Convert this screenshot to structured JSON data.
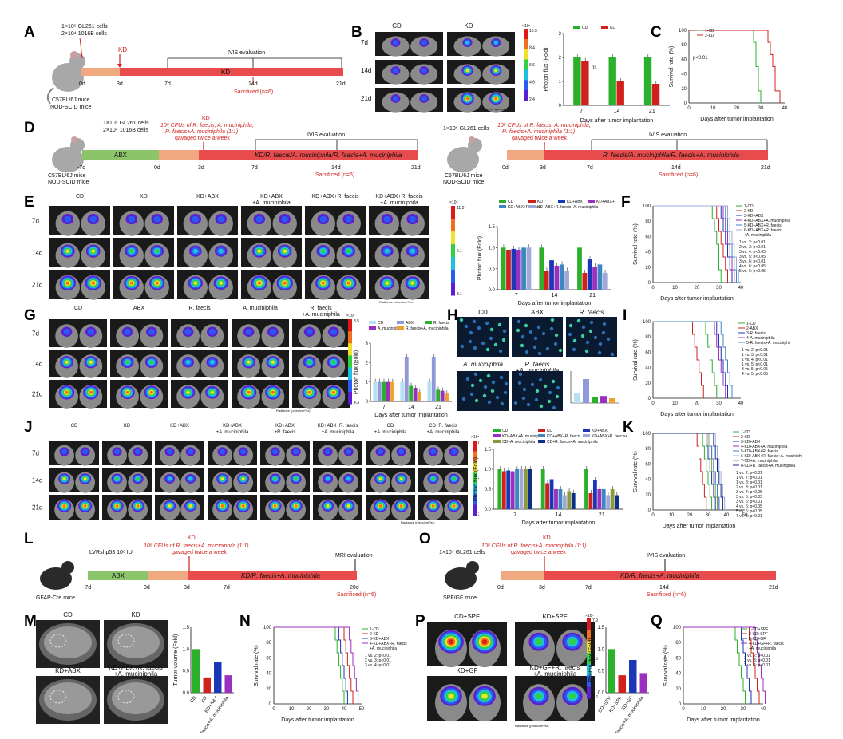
{
  "panels": {
    "A": {
      "label": "A",
      "cells": "1×10⁵ GL261 cells",
      "cells2": "2×10⁴ 1016B cells",
      "mice": "C57BL/6J mice",
      "mice2": "NOD-SCID mice",
      "kd_arrow": "KD",
      "ivis": "IVIS evaluation",
      "bar_label": "KD",
      "sacrificed": "Sacrificed (n=6)",
      "ticks": [
        "0d",
        "3d",
        "7d",
        "14d",
        "21d"
      ]
    },
    "B": {
      "label": "B",
      "groups": [
        "CD",
        "KD"
      ],
      "rows": [
        "7d",
        "14d",
        "21d"
      ],
      "colorbar_unit": "Radiance (p/sec/cm²/sr)",
      "colorbar_max": "10.5",
      "colorbar_ticks": [
        "8.4",
        "6.6",
        "4.6",
        "2.4"
      ],
      "colorbar_exp": "×10⁵",
      "chart_data": {
        "type": "bar",
        "categories": [
          "7",
          "14",
          "21"
        ],
        "series": [
          {
            "name": "CD",
            "values": [
              2.0,
              2.0,
              2.0
            ],
            "color": "#2ab02a"
          },
          {
            "name": "KD",
            "values": [
              1.85,
              1.0,
              0.9
            ],
            "color": "#d0211c"
          }
        ],
        "xlabel": "Days after tumor implantation",
        "ylabel": "Photon flux (Fold)",
        "ylim": [
          0,
          3
        ],
        "yticks": [
          "0",
          "1",
          "2",
          "3"
        ],
        "annotations": [
          "ns",
          "**",
          "**"
        ]
      }
    },
    "C": {
      "label": "C",
      "chart_data": {
        "type": "line",
        "series": [
          {
            "name": "1-CD",
            "color": "#2ab02a"
          },
          {
            "name": "2-KD",
            "color": "#d0211c"
          }
        ],
        "xlabel": "Days after tumor implantation",
        "ylabel": "Survival rate (%)",
        "xticks": [
          "0",
          "10",
          "20",
          "30",
          "40"
        ],
        "yticks": [
          "0",
          "20",
          "40",
          "60",
          "80",
          "100"
        ],
        "annotation": "p<0.01"
      }
    },
    "D": {
      "label": "D",
      "cells": "1×10⁵ GL261 cells",
      "cells2": "2×10⁴ 1016B cells",
      "cfu": "10⁸ CFUs of R. faecis, A. muciniphila,",
      "cfu2": "R. faecis+A. muciniphila (1:1)",
      "gavage": "gavaged twice a week",
      "kd_arrow": "KD",
      "abx": "ABX",
      "bar": "KD/R. faecis/A. muciniphila/R. faecis+A. muciniphila",
      "ivis": "IVIS evaluation",
      "sacrificed": "Sacrificed (n=6)",
      "mice": "C57BL/6J mice",
      "mice2": "NOD-SCID mice",
      "ticks": [
        "-7d",
        "0d",
        "3d",
        "7d",
        "14d",
        "21d"
      ],
      "right": {
        "cells": "1×10⁵ GL261 cells",
        "cfu": "10⁸ CFUs of R. faecis, A. muciniphila,",
        "cfu2": "R. faecis+A. muciniphila (1:1)",
        "gavage": "gavaged twice a week",
        "bar": "R. faecis/A. muciniphila/R. faecis+A. muciniphila",
        "ivis": "IVIS evaluation",
        "sacrificed": "Sacrificed (n=6)",
        "mice": "C57BL/6J mice",
        "mice2": "NOD-SCID mice",
        "ticks": [
          "0d",
          "3d",
          "7d",
          "14d",
          "21d"
        ]
      }
    },
    "E": {
      "label": "E",
      "groups": [
        "CD",
        "KD",
        "KD+ABX",
        "KD+ABX\n+A. muciniphila",
        "KD+ABX+R. faecis",
        "KD+ABX+R. faecis\n+A. muciniphila"
      ],
      "rows": [
        "7d",
        "14d",
        "21d"
      ],
      "colorbar_max": "11.5",
      "colorbar_mid": "6.1",
      "colorbar_low": "3.1",
      "colorbar_exp": "×10⁵",
      "colorbar_unit": "Radiance (p/sec/cm²/sr)",
      "chart_data": {
        "type": "bar",
        "categories": [
          "7",
          "14",
          "21"
        ],
        "series": [
          {
            "name": "CD",
            "values": [
              1.0,
              1.0,
              1.0
            ],
            "color": "#2ab02a"
          },
          {
            "name": "KD",
            "values": [
              0.95,
              0.45,
              0.4
            ],
            "color": "#d0211c"
          },
          {
            "name": "KD+ABX",
            "values": [
              0.97,
              0.7,
              0.72
            ],
            "color": "#1c36b8"
          },
          {
            "name": "KD+ABX+A. muciniphila",
            "values": [
              0.95,
              0.57,
              0.55
            ],
            "color": "#9a2fc0"
          },
          {
            "name": "KD+ABX+R. faecis",
            "values": [
              1.0,
              0.6,
              0.6
            ],
            "color": "#3d86c0"
          },
          {
            "name": "KD+ABX+R. faecis+A. muciniphila",
            "values": [
              1.0,
              0.45,
              0.4
            ],
            "color": "#9fa8d8"
          }
        ],
        "xlabel": "Days after tumor implantation",
        "ylabel": "Photon flux (Fold)",
        "ylim": [
          0,
          1.5
        ],
        "yticks": [
          "0.0",
          "0.5",
          "1.0",
          "1.5"
        ]
      }
    },
    "F": {
      "label": "F",
      "legend": [
        "1-CD",
        "2-KD",
        "3-KD+ABX",
        "4-KD+ABX+A. muciniphila",
        "5-KD+ABX+R. faecis",
        "6-KD+ABX+R. faecis\n+A. muciniphila"
      ],
      "stats": [
        "1 vs. 2: p<0.01",
        "2 vs. 3: p<0.01",
        "3 vs. 4: p<0.05",
        "3 vs. 5: p<0.05",
        "3 vs. 6: p<0.01",
        "4 vs. 6: p<0.05",
        "5 vs. 6: p<0.05"
      ],
      "xlabel": "Days after tumor implantation",
      "ylabel": "Survival rate (%)",
      "xticks": [
        "0",
        "10",
        "20",
        "30",
        "40"
      ],
      "yticks": [
        "0",
        "20",
        "40",
        "60",
        "80",
        "100"
      ]
    },
    "G": {
      "label": "G",
      "groups": [
        "CD",
        "ABX",
        "R. faecis",
        "A. muciniphila",
        "R. faecis\n+A. muciniphila"
      ],
      "rows": [
        "7d",
        "14d",
        "21d"
      ],
      "colorbar_max": "8.5",
      "colorbar_mid": "6.5",
      "colorbar_low": "4.3",
      "colorbar_exp": "×10⁵",
      "colorbar_unit": "Radiance (p/sec/cm²/sr)",
      "chart_data": {
        "type": "bar",
        "categories": [
          "7",
          "14",
          "21"
        ],
        "series": [
          {
            "name": "CD",
            "values": [
              1.0,
              1.0,
              1.0
            ],
            "color": "#b7e0f0"
          },
          {
            "name": "ABX",
            "values": [
              1.0,
              2.3,
              2.3
            ],
            "color": "#8f98d8"
          },
          {
            "name": "R. faecis",
            "values": [
              1.0,
              0.8,
              0.6
            ],
            "color": "#2ab02a"
          },
          {
            "name": "A. muciniphila",
            "values": [
              1.0,
              0.7,
              0.55
            ],
            "color": "#9a2fc0"
          },
          {
            "name": "R. faecis+A. muciniphila",
            "values": [
              1.0,
              0.5,
              0.4
            ],
            "color": "#f0a030"
          }
        ],
        "xlabel": "Days after tumor implantation",
        "ylabel": "Photon flux (Fold)",
        "ylim": [
          0,
          3
        ],
        "yticks": [
          "0",
          "1",
          "2",
          "3"
        ]
      }
    },
    "H": {
      "label": "H",
      "groups": [
        "CD",
        "ABX",
        "R. faecis",
        "A. muciniphila",
        "R. faecis\n+A. muciniphila"
      ]
    },
    "I": {
      "label": "I",
      "legend": [
        "1-CD",
        "2-ABX",
        "3-R. faecis",
        "4-A. muciniphila",
        "5-R. faecis+A. muciniphila"
      ],
      "stats": [
        "1 vs. 2: p<0.01",
        "1 vs. 3: p<0.01",
        "1 vs. 4: p<0.01",
        "1 vs. 5: p<0.01",
        "3 vs. 5: p<0.05",
        "4 vs. 5: p<0.05"
      ],
      "xlabel": "Days after tumor implantation",
      "ylabel": "Survival rate (%)",
      "xticks": [
        "0",
        "10",
        "20",
        "30",
        "40"
      ],
      "yticks": [
        "0",
        "20",
        "40",
        "60",
        "80",
        "100"
      ]
    },
    "J": {
      "label": "J",
      "groups": [
        "CD",
        "KD",
        "KD+ABX",
        "KD+ABX\n+A. muciniphila",
        "KD+ABX\n+R. faecis",
        "KD+ABX+R. faecis\n+A. muciniphila",
        "CD\n+A. muciniphila",
        "CD+R. faecis\n+A. muciniphila"
      ],
      "rows": [
        "7d",
        "14d",
        "21d"
      ],
      "colorbar_max": "8.0",
      "colorbar_mid": "4.9",
      "colorbar_low": "2.1",
      "colorbar_exp": "×10⁵",
      "colorbar_unit": "Radiance (p/sec/cm²/sr)",
      "chart_data": {
        "type": "bar",
        "categories": [
          "7",
          "14",
          "21"
        ],
        "series": [
          {
            "name": "CD",
            "values": [
              1.0,
              1.0,
              1.0
            ],
            "color": "#2ab02a"
          },
          {
            "name": "KD",
            "values": [
              0.95,
              0.65,
              0.4
            ],
            "color": "#d0211c"
          },
          {
            "name": "KD+ABX",
            "values": [
              0.97,
              0.75,
              0.72
            ],
            "color": "#1c36b8"
          },
          {
            "name": "KD+ABX+A. muciniphila",
            "values": [
              0.95,
              0.5,
              0.5
            ],
            "color": "#9a2fc0"
          },
          {
            "name": "KD+ABX+R. faecis",
            "values": [
              1.0,
              0.5,
              0.5
            ],
            "color": "#3d86c0"
          },
          {
            "name": "KD+ABX+R. faecis+A. muciniphila",
            "values": [
              1.0,
              0.35,
              0.35
            ],
            "color": "#9fa8d8"
          },
          {
            "name": "CD+A. muciniphila",
            "values": [
              1.0,
              0.45,
              0.5
            ],
            "color": "#8a9a3a"
          },
          {
            "name": "CD+R. faecis+A. muciniphila",
            "values": [
              1.0,
              0.4,
              0.35
            ],
            "color": "#0e2f86"
          }
        ],
        "xlabel": "Days after tumor implantation",
        "ylabel": "Photon flux (Fold)",
        "ylim": [
          0,
          1.5
        ],
        "yticks": [
          "0.0",
          "0.5",
          "1.0",
          "1.5"
        ]
      }
    },
    "K": {
      "label": "K",
      "legend": [
        "1-CD",
        "2-KD",
        "3-KD+ABX",
        "4-KD+ABX+A. muciniphila",
        "5-KD+ABX+R. faecis",
        "6-KD+ABX+R. faecis+A. muciniphila",
        "7-CD+A. muciniphila",
        "8-CD+R. faecis+A. muciniphila"
      ],
      "stats": [
        "1 vs. 2: p<0.01",
        "1 vs. 7: p<0.01",
        "1 vs. 8: p<0.01",
        "2 vs. 3: p<0.01",
        "3 vs. 4: p<0.05",
        "3 vs. 5: p<0.05",
        "3 vs. 6: p<0.01",
        "4 vs. 6: p<0.05",
        "5 vs. 6: p<0.05",
        "7 vs. 8: p<0.01"
      ],
      "xlabel": "Days after tumor implantation",
      "ylabel": "Survival rate (%)",
      "xticks": [
        "0",
        "10",
        "20",
        "30",
        "40",
        "50"
      ],
      "yticks": [
        "0",
        "20",
        "40",
        "60",
        "80",
        "100"
      ]
    },
    "L": {
      "label": "L",
      "virus": "LVRshp53  10⁸ IU",
      "cfu": "10⁸ CFUs of R. faecis+A. muciniphila (1:1)",
      "gavage": "gavaged twice a week",
      "kd_arrow": "KD",
      "abx": "ABX",
      "bar": "KD/R. faecis+A. muciniphila",
      "mri": "MRI evaluation",
      "sacrificed": "Sacrificed (n=6)",
      "mice": "GFAP-Cre mice",
      "ticks": [
        "-7d",
        "0d",
        "3d",
        "7d",
        "20d"
      ]
    },
    "O": {
      "label": "O",
      "cells": "1×10⁵ GL261 cells",
      "cfu": "10⁸ CFUs of R. faecis+A. muciniphila (1:1)",
      "gavage": "gavaged twice a week",
      "kd_arrow": "KD",
      "bar": "KD/R. faecis+A. muciniphila",
      "ivis": "IVIS evaluation",
      "sacrificed": "Sacrificed (n=6)",
      "mice": "SPF/GF mice",
      "ticks": [
        "0d",
        "3d",
        "7d",
        "14d",
        "21d"
      ]
    },
    "M": {
      "label": "M",
      "groups": [
        "CD",
        "KD",
        "KD+ABX",
        "KD+ABX+R. faecis\n+A. muciniphila"
      ],
      "chart_data": {
        "type": "bar",
        "categories": [
          "CD",
          "KD",
          "KD+ABX",
          "KD+ABX+R. faecis+A. muciniphila"
        ],
        "values": [
          1.0,
          0.35,
          0.7,
          0.4
        ],
        "colors": [
          "#2ab02a",
          "#d0211c",
          "#1c36b8",
          "#9a2fc0"
        ],
        "ylabel": "Tumor volume (Fold)",
        "ylim": [
          0,
          1.5
        ],
        "yticks": [
          "0.0",
          "0.5",
          "1.0",
          "1.5"
        ]
      }
    },
    "N": {
      "label": "N",
      "legend": [
        "1-CD",
        "2-KD",
        "3-KD+ABX",
        "4-KD+ABX+R. faecis\n+A. muciniphila"
      ],
      "stats": [
        "1 vs. 2: p<0.01",
        "2 vs. 3: p<0.01",
        "3 vs. 4: p<0.01"
      ],
      "xlabel": "Days after tumor implantation",
      "ylabel": "Survival rate (%)",
      "xticks": [
        "0",
        "10",
        "20",
        "30",
        "40",
        "50"
      ],
      "yticks": [
        "0",
        "20",
        "40",
        "60",
        "80",
        "100"
      ]
    },
    "P": {
      "label": "P",
      "groups": [
        "CD+SPF",
        "KD+SPF",
        "KD+GF",
        "KD+GF+R. faecis\n+A. muciniphila"
      ],
      "colorbar_max": "7.9",
      "colorbar_mid": "4.5",
      "colorbar_low": "1.6",
      "colorbar_exp": "×10⁵",
      "colorbar_unit": "Radiance (p/sec/cm²/sr)",
      "chart_data": {
        "type": "bar",
        "categories": [
          "CD+SPF",
          "KD+SPF",
          "KD+GF",
          "KD+GF+R. faecis+A. muciniphila"
        ],
        "values": [
          1.0,
          0.4,
          0.75,
          0.45
        ],
        "colors": [
          "#2ab02a",
          "#d0211c",
          "#1c36b8",
          "#9a2fc0"
        ],
        "ylabel": "Photon flux (Fold)",
        "ylim": [
          0,
          1.5
        ],
        "yticks": [
          "0.0",
          "0.5",
          "1.0",
          "1.5"
        ]
      }
    },
    "Q": {
      "label": "Q",
      "legend": [
        "1-CD+SPF",
        "2-KD+SPF",
        "3-KD+GF",
        "4-KD+GF+R. faecis\n+A. muciniphila"
      ],
      "stats": [
        "1 vs. 2: p<0.01",
        "2 vs. 3: p<0.01",
        "3 vs. 4: p<0.01"
      ],
      "xlabel": "Days after tumor implantation",
      "ylabel": "Survival rate (%)",
      "xticks": [
        "0",
        "10",
        "20",
        "30",
        "40"
      ],
      "yticks": [
        "0",
        "20",
        "40",
        "60",
        "80",
        "100"
      ]
    }
  }
}
